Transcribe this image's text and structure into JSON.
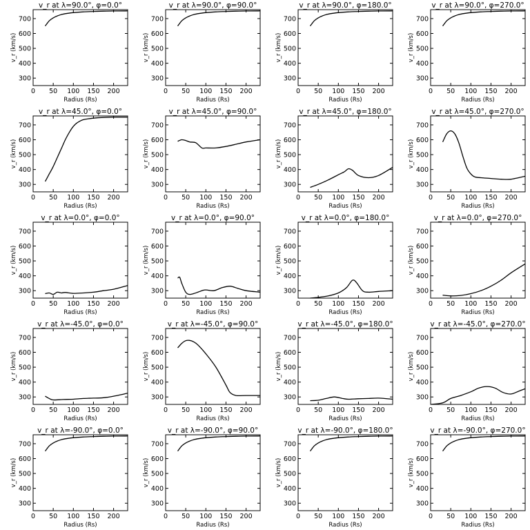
{
  "figure": {
    "xlabel": "Radius (Rs)",
    "ylabel": "v_r (km/s)",
    "xlim": [
      0,
      235
    ],
    "ylim": [
      250,
      760
    ],
    "xticks": [
      0,
      50,
      100,
      150,
      200
    ],
    "yticks": [
      300,
      400,
      500,
      600,
      700
    ]
  },
  "chart_data": [
    {
      "type": "line",
      "title": "v_r at λ=90.0°, φ=0.0°",
      "xlabel": "Radius (Rs)",
      "ylabel": "v_r (km/s)",
      "xlim": [
        0,
        235
      ],
      "ylim": [
        250,
        760
      ],
      "x": [
        30,
        40,
        50,
        60,
        70,
        80,
        100,
        125,
        150,
        175,
        200,
        235
      ],
      "y": [
        650,
        685,
        705,
        718,
        727,
        733,
        740,
        745,
        748,
        750,
        751,
        752
      ]
    },
    {
      "type": "line",
      "title": "v_r at λ=90.0°, φ=90.0°",
      "xlabel": "Radius (Rs)",
      "ylabel": "v_r (km/s)",
      "xlim": [
        0,
        235
      ],
      "ylim": [
        250,
        760
      ],
      "x": [
        30,
        40,
        50,
        60,
        70,
        80,
        100,
        125,
        150,
        175,
        200,
        235
      ],
      "y": [
        650,
        685,
        705,
        718,
        727,
        733,
        740,
        745,
        748,
        750,
        751,
        752
      ]
    },
    {
      "type": "line",
      "title": "v_r at λ=90.0°, φ=180.0°",
      "xlabel": "Radius (Rs)",
      "ylabel": "v_r (km/s)",
      "xlim": [
        0,
        235
      ],
      "ylim": [
        250,
        760
      ],
      "x": [
        30,
        40,
        50,
        60,
        70,
        80,
        100,
        125,
        150,
        175,
        200,
        235
      ],
      "y": [
        650,
        685,
        705,
        718,
        727,
        733,
        740,
        745,
        748,
        750,
        751,
        752
      ]
    },
    {
      "type": "line",
      "title": "v_r at λ=90.0°, φ=270.0°",
      "xlabel": "Radius (Rs)",
      "ylabel": "v_r (km/s)",
      "xlim": [
        0,
        235
      ],
      "ylim": [
        250,
        760
      ],
      "x": [
        30,
        40,
        50,
        60,
        70,
        80,
        100,
        125,
        150,
        175,
        200,
        235
      ],
      "y": [
        650,
        685,
        705,
        718,
        727,
        733,
        740,
        745,
        748,
        750,
        751,
        752
      ]
    },
    {
      "type": "line",
      "title": "v_r at λ=45.0°, φ=0.0°",
      "xlabel": "Radius (Rs)",
      "ylabel": "v_r (km/s)",
      "xlim": [
        0,
        235
      ],
      "ylim": [
        250,
        760
      ],
      "x": [
        30,
        40,
        50,
        60,
        70,
        80,
        90,
        100,
        110,
        125,
        150,
        175,
        200,
        235
      ],
      "y": [
        320,
        370,
        420,
        480,
        540,
        600,
        650,
        690,
        715,
        735,
        745,
        750,
        752,
        752
      ]
    },
    {
      "type": "line",
      "title": "v_r at λ=45.0°, φ=90.0°",
      "xlabel": "Radius (Rs)",
      "ylabel": "v_r (km/s)",
      "xlim": [
        0,
        235
      ],
      "ylim": [
        250,
        760
      ],
      "x": [
        30,
        40,
        50,
        60,
        75,
        90,
        100,
        125,
        150,
        175,
        200,
        235
      ],
      "y": [
        590,
        600,
        595,
        585,
        580,
        545,
        545,
        545,
        555,
        570,
        585,
        600
      ]
    },
    {
      "type": "line",
      "title": "v_r at λ=45.0°, φ=180.0°",
      "xlabel": "Radius (Rs)",
      "ylabel": "v_r (km/s)",
      "xlim": [
        0,
        235
      ],
      "ylim": [
        250,
        760
      ],
      "x": [
        30,
        50,
        75,
        100,
        115,
        125,
        135,
        150,
        175,
        200,
        235
      ],
      "y": [
        280,
        300,
        330,
        365,
        385,
        405,
        395,
        360,
        345,
        360,
        415
      ]
    },
    {
      "type": "line",
      "title": "v_r at λ=45.0°, φ=270.0°",
      "xlabel": "Radius (Rs)",
      "ylabel": "v_r (km/s)",
      "xlim": [
        0,
        235
      ],
      "ylim": [
        250,
        760
      ],
      "x": [
        30,
        40,
        50,
        60,
        70,
        80,
        90,
        100,
        110,
        125,
        150,
        175,
        200,
        235
      ],
      "y": [
        585,
        640,
        660,
        640,
        580,
        490,
        410,
        370,
        350,
        345,
        340,
        335,
        335,
        355
      ]
    },
    {
      "type": "line",
      "title": "v_r at λ=0.0°, φ=0.0°",
      "xlabel": "Radius (Rs)",
      "ylabel": "v_r (km/s)",
      "xlim": [
        0,
        235
      ],
      "ylim": [
        250,
        760
      ],
      "x": [
        30,
        40,
        50,
        60,
        70,
        80,
        100,
        125,
        150,
        175,
        200,
        235
      ],
      "y": [
        280,
        285,
        275,
        290,
        285,
        288,
        282,
        285,
        290,
        300,
        310,
        335
      ]
    },
    {
      "type": "line",
      "title": "v_r at λ=0.0°, φ=90.0°",
      "xlabel": "Radius (Rs)",
      "ylabel": "v_r (km/s)",
      "xlim": [
        0,
        235
      ],
      "ylim": [
        250,
        760
      ],
      "x": [
        30,
        35,
        40,
        50,
        60,
        75,
        90,
        100,
        120,
        140,
        160,
        180,
        200,
        235
      ],
      "y": [
        385,
        390,
        350,
        290,
        275,
        285,
        300,
        305,
        300,
        320,
        330,
        315,
        300,
        290
      ]
    },
    {
      "type": "line",
      "title": "v_r at λ=0.0°, φ=180.0°",
      "xlabel": "Radius (Rs)",
      "ylabel": "v_r (km/s)",
      "xlim": [
        0,
        235
      ],
      "ylim": [
        250,
        760
      ],
      "x": [
        30,
        50,
        75,
        100,
        120,
        135,
        145,
        160,
        175,
        200,
        235
      ],
      "y": [
        250,
        255,
        265,
        285,
        320,
        370,
        355,
        300,
        290,
        295,
        300
      ]
    },
    {
      "type": "line",
      "title": "v_r at λ=0.0°, φ=270.0°",
      "xlabel": "Radius (Rs)",
      "ylabel": "v_r (km/s)",
      "xlim": [
        0,
        235
      ],
      "ylim": [
        250,
        760
      ],
      "x": [
        30,
        50,
        75,
        100,
        125,
        150,
        175,
        200,
        235
      ],
      "y": [
        270,
        265,
        268,
        280,
        300,
        330,
        370,
        420,
        480
      ]
    },
    {
      "type": "line",
      "title": "v_r at λ=-45.0°, φ=0.0°",
      "xlabel": "Radius (Rs)",
      "ylabel": "v_r (km/s)",
      "xlim": [
        0,
        235
      ],
      "ylim": [
        250,
        760
      ],
      "x": [
        30,
        40,
        50,
        75,
        100,
        125,
        150,
        175,
        200,
        235
      ],
      "y": [
        305,
        290,
        280,
        283,
        285,
        290,
        292,
        295,
        305,
        325
      ]
    },
    {
      "type": "line",
      "title": "v_r at λ=-45.0°, φ=90.0°",
      "xlabel": "Radius (Rs)",
      "ylabel": "v_r (km/s)",
      "xlim": [
        0,
        235
      ],
      "ylim": [
        250,
        760
      ],
      "x": [
        30,
        40,
        50,
        60,
        70,
        80,
        100,
        125,
        150,
        160,
        175,
        200,
        235
      ],
      "y": [
        630,
        660,
        678,
        680,
        670,
        650,
        590,
        500,
        380,
        330,
        310,
        310,
        310
      ]
    },
    {
      "type": "line",
      "title": "v_r at λ=-45.0°, φ=180.0°",
      "xlabel": "Radius (Rs)",
      "ylabel": "v_r (km/s)",
      "xlim": [
        0,
        235
      ],
      "ylim": [
        250,
        760
      ],
      "x": [
        30,
        50,
        70,
        90,
        110,
        125,
        150,
        175,
        200,
        235
      ],
      "y": [
        275,
        278,
        290,
        300,
        290,
        285,
        288,
        290,
        292,
        285
      ]
    },
    {
      "type": "line",
      "title": "v_r at λ=-45.0°, φ=270.0°",
      "xlabel": "Radius (Rs)",
      "ylabel": "v_r (km/s)",
      "xlim": [
        0,
        235
      ],
      "ylim": [
        250,
        760
      ],
      "x": [
        0,
        30,
        50,
        75,
        100,
        120,
        140,
        160,
        180,
        200,
        220,
        235
      ],
      "y": [
        250,
        260,
        290,
        310,
        335,
        360,
        370,
        360,
        330,
        320,
        340,
        355
      ]
    },
    {
      "type": "line",
      "title": "v_r at λ=-90.0°, φ=0.0°",
      "xlabel": "Radius (Rs)",
      "ylabel": "v_r (km/s)",
      "xlim": [
        0,
        235
      ],
      "ylim": [
        250,
        760
      ],
      "x": [
        30,
        40,
        50,
        60,
        70,
        80,
        100,
        125,
        150,
        175,
        200,
        235
      ],
      "y": [
        650,
        685,
        705,
        718,
        727,
        733,
        740,
        745,
        748,
        750,
        751,
        752
      ]
    },
    {
      "type": "line",
      "title": "v_r at λ=-90.0°, φ=90.0°",
      "xlabel": "Radius (Rs)",
      "ylabel": "v_r (km/s)",
      "xlim": [
        0,
        235
      ],
      "ylim": [
        250,
        760
      ],
      "x": [
        30,
        40,
        50,
        60,
        70,
        80,
        100,
        125,
        150,
        175,
        200,
        235
      ],
      "y": [
        650,
        685,
        705,
        718,
        727,
        733,
        740,
        745,
        748,
        750,
        751,
        752
      ]
    },
    {
      "type": "line",
      "title": "v_r at λ=-90.0°, φ=180.0°",
      "xlabel": "Radius (Rs)",
      "ylabel": "v_r (km/s)",
      "xlim": [
        0,
        235
      ],
      "ylim": [
        250,
        760
      ],
      "x": [
        30,
        40,
        50,
        60,
        70,
        80,
        100,
        125,
        150,
        175,
        200,
        235
      ],
      "y": [
        650,
        685,
        705,
        718,
        727,
        733,
        740,
        745,
        748,
        750,
        751,
        752
      ]
    },
    {
      "type": "line",
      "title": "v_r at λ=-90.0°, φ=270.0°",
      "xlabel": "Radius (Rs)",
      "ylabel": "v_r (km/s)",
      "xlim": [
        0,
        235
      ],
      "ylim": [
        250,
        760
      ],
      "x": [
        30,
        40,
        50,
        60,
        70,
        80,
        100,
        125,
        150,
        175,
        200,
        235
      ],
      "y": [
        650,
        685,
        705,
        718,
        727,
        733,
        740,
        745,
        748,
        750,
        751,
        752
      ]
    }
  ]
}
